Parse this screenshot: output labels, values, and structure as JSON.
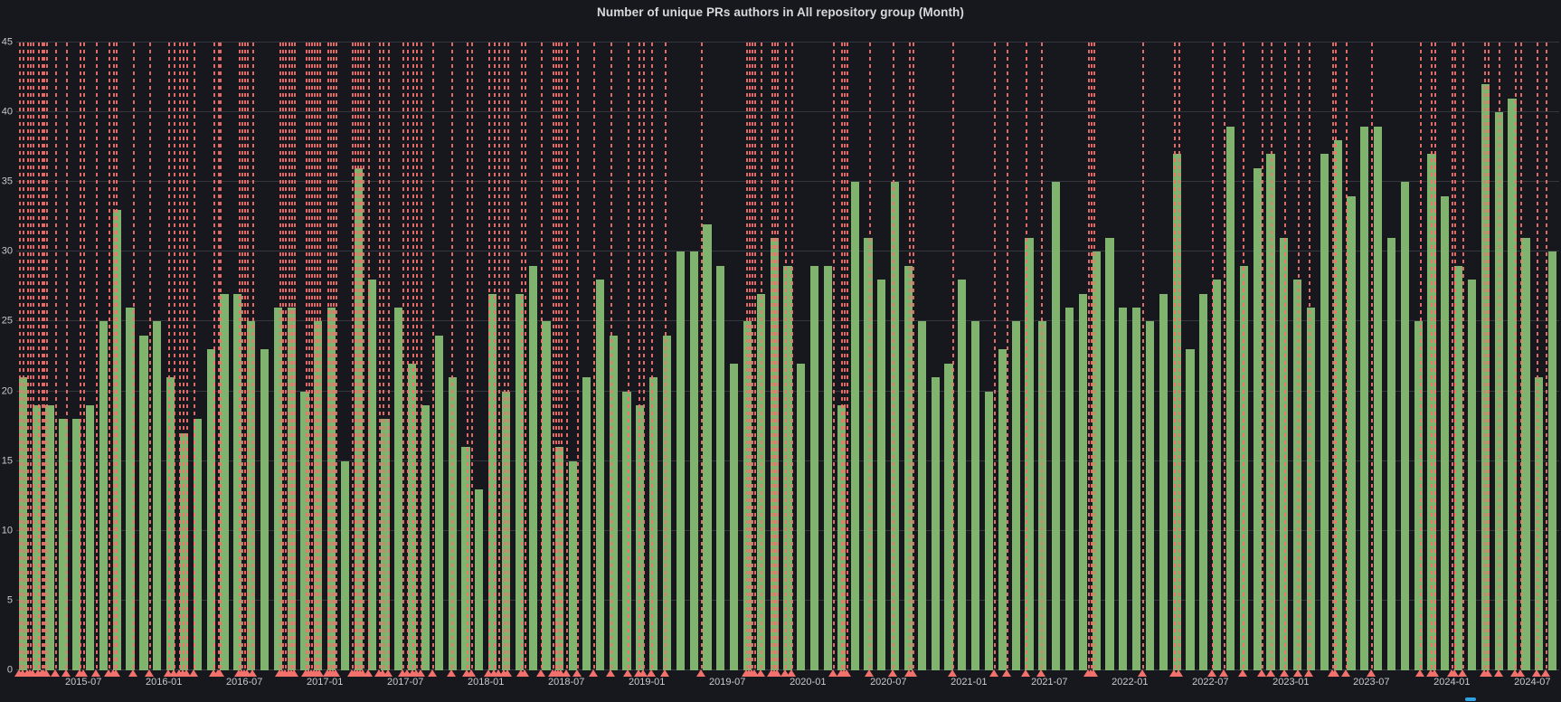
{
  "panel": {
    "title": "Number of unique PRs authors in All repository group (Month)"
  },
  "y_axis": {
    "min": 0,
    "max": 45,
    "ticks": [
      0,
      5,
      10,
      15,
      20,
      25,
      30,
      35,
      40,
      45
    ]
  },
  "x_axis": {
    "tick_labels": [
      "2015-07",
      "2016-01",
      "2016-07",
      "2017-01",
      "2017-07",
      "2018-01",
      "2018-07",
      "2019-01",
      "2019-07",
      "2020-01",
      "2020-07",
      "2021-01",
      "2021-07",
      "2022-01",
      "2022-07",
      "2023-01",
      "2023-07",
      "2024-01",
      "2024-07"
    ],
    "tick_month_indices": [
      5,
      11,
      17,
      23,
      29,
      35,
      41,
      47,
      53,
      59,
      65,
      71,
      77,
      83,
      89,
      95,
      101,
      107,
      113
    ]
  },
  "colors": {
    "background": "#16181D",
    "bar_green": "#80B36E",
    "annotation_red": "#F3716C",
    "grid": "#34383E",
    "axis_text": "#C8C9CD",
    "title_text": "#D8D9DA",
    "legend_marker_blue": "#33A2E5"
  },
  "legend": {
    "marker_color": "#33A2E5",
    "note": "legend marker cut off at bottom edge"
  },
  "chart_data": {
    "type": "bar",
    "title": "Number of unique PRs authors in All repository group (Month)",
    "xlabel": "",
    "ylabel": "",
    "ylim": [
      0,
      45
    ],
    "grid": true,
    "months": [
      "2015-02",
      "2015-03",
      "2015-04",
      "2015-05",
      "2015-06",
      "2015-07",
      "2015-08",
      "2015-09",
      "2015-10",
      "2015-11",
      "2015-12",
      "2016-01",
      "2016-02",
      "2016-03",
      "2016-04",
      "2016-05",
      "2016-06",
      "2016-07",
      "2016-08",
      "2016-09",
      "2016-10",
      "2016-11",
      "2016-12",
      "2017-01",
      "2017-02",
      "2017-03",
      "2017-04",
      "2017-05",
      "2017-06",
      "2017-07",
      "2017-08",
      "2017-09",
      "2017-10",
      "2017-11",
      "2017-12",
      "2018-01",
      "2018-02",
      "2018-03",
      "2018-04",
      "2018-05",
      "2018-06",
      "2018-07",
      "2018-08",
      "2018-09",
      "2018-10",
      "2018-11",
      "2018-12",
      "2019-01",
      "2019-02",
      "2019-03",
      "2019-04",
      "2019-05",
      "2019-06",
      "2019-07",
      "2019-08",
      "2019-09",
      "2019-10",
      "2019-11",
      "2019-12",
      "2020-01",
      "2020-02",
      "2020-03",
      "2020-04",
      "2020-05",
      "2020-06",
      "2020-07",
      "2020-08",
      "2020-09",
      "2020-10",
      "2020-11",
      "2020-12",
      "2021-01",
      "2021-02",
      "2021-03",
      "2021-04",
      "2021-05",
      "2021-06",
      "2021-07",
      "2021-08",
      "2021-09",
      "2021-10",
      "2021-11",
      "2021-12",
      "2022-01",
      "2022-02",
      "2022-03",
      "2022-04",
      "2022-05",
      "2022-06",
      "2022-07",
      "2022-08",
      "2022-09",
      "2022-10",
      "2022-11",
      "2022-12",
      "2023-01",
      "2023-02",
      "2023-03",
      "2023-04",
      "2023-05",
      "2023-06",
      "2023-07",
      "2023-08",
      "2023-09",
      "2023-10",
      "2023-11",
      "2023-12",
      "2024-01",
      "2024-02",
      "2024-03",
      "2024-04",
      "2024-05",
      "2024-06",
      "2024-07",
      "2024-08"
    ],
    "values": [
      21,
      19,
      19,
      18,
      18,
      19,
      25,
      33,
      26,
      24,
      25,
      21,
      17,
      18,
      23,
      27,
      27,
      25,
      23,
      26,
      26,
      20,
      25,
      26,
      15,
      36,
      28,
      18,
      26,
      22,
      19,
      24,
      21,
      16,
      13,
      27,
      20,
      27,
      29,
      25,
      16,
      15,
      21,
      28,
      24,
      20,
      19,
      21,
      24,
      30,
      30,
      32,
      29,
      22,
      25,
      27,
      31,
      29,
      22,
      29,
      29,
      19,
      35,
      31,
      28,
      35,
      29,
      25,
      21,
      22,
      28,
      25,
      20,
      23,
      25,
      31,
      25,
      35,
      26,
      27,
      30,
      31,
      26,
      26,
      25,
      27,
      37,
      23,
      27,
      28,
      39,
      29,
      36,
      37,
      31,
      28,
      26,
      37,
      38,
      34,
      39,
      39,
      31,
      35,
      25,
      37,
      34,
      29,
      28,
      42,
      40,
      41,
      31,
      21,
      30
    ],
    "annotations_month_positions": [
      0.2,
      0.5,
      0.8,
      1.0,
      1.2,
      1.6,
      1.9,
      2.0,
      2.2,
      2.9,
      3.7,
      4.7,
      5.0,
      5.9,
      6.9,
      7.2,
      7.4,
      8.7,
      9.9,
      11.3,
      11.7,
      12.1,
      12.4,
      12.7,
      13.2,
      14.7,
      15.0,
      15.2,
      16.6,
      16.8,
      17.0,
      17.2,
      17.6,
      19.6,
      19.8,
      20.0,
      20.3,
      20.5,
      20.7,
      21.6,
      21.8,
      22.0,
      22.2,
      22.4,
      22.6,
      23.2,
      23.4,
      23.6,
      23.8,
      25.0,
      25.2,
      25.4,
      25.6,
      25.8,
      26.2,
      27.0,
      27.3,
      27.7,
      28.8,
      29.1,
      29.5,
      29.8,
      30.1,
      31.0,
      32.4,
      33.6,
      33.9,
      35.2,
      35.6,
      35.9,
      36.3,
      36.6,
      37.6,
      37.9,
      39.1,
      40.0,
      40.2,
      40.4,
      40.6,
      41.0,
      41.8,
      43.0,
      44.3,
      45.6,
      46.4,
      46.7,
      47.3,
      48.3,
      51.0,
      54.4,
      54.6,
      54.8,
      55.0,
      55.5,
      56.3,
      56.5,
      56.7,
      57.3,
      57.8,
      60.9,
      61.5,
      61.7,
      61.9,
      63.6,
      65.3,
      66.5,
      66.8,
      69.8,
      72.9,
      73.8,
      75.2,
      76.4,
      79.9,
      80.1,
      80.3,
      83.9,
      86.3,
      86.6,
      89.1,
      90.0,
      91.4,
      92.8,
      93.5,
      94.5,
      95.5,
      96.3,
      98.1,
      98.3,
      99.1,
      101.0,
      104.6,
      105.4,
      105.7,
      107.0,
      107.2,
      107.8,
      109.4,
      109.7,
      110.5,
      111.7,
      112.1,
      113.3,
      114.0
    ],
    "legend_position": "bottom"
  }
}
